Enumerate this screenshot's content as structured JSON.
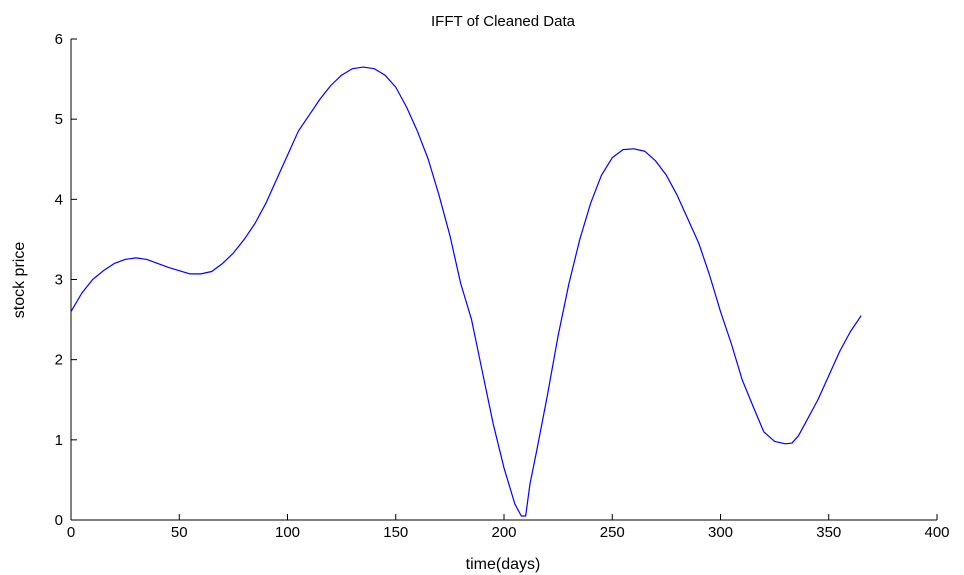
{
  "chart_data": {
    "type": "line",
    "title": "IFFT of Cleaned Data",
    "xlabel": "time(days)",
    "ylabel": "stock price",
    "xlim": [
      0,
      400
    ],
    "ylim": [
      0,
      6
    ],
    "xticks": [
      0,
      50,
      100,
      150,
      200,
      250,
      300,
      350,
      400
    ],
    "yticks": [
      0,
      1,
      2,
      3,
      4,
      5,
      6
    ],
    "grid": false,
    "colors": {
      "line": "#0000ff",
      "axes": "#000000"
    },
    "series": [
      {
        "x": [
          0,
          5,
          10,
          15,
          20,
          25,
          30,
          35,
          40,
          45,
          50,
          55,
          60,
          65,
          70,
          75,
          80,
          85,
          90,
          95,
          100,
          105,
          110,
          115,
          120,
          125,
          130,
          135,
          140,
          145,
          150,
          155,
          160,
          165,
          170,
          175,
          180,
          185,
          190,
          195,
          200,
          205,
          208,
          210,
          212,
          215,
          220,
          225,
          230,
          235,
          240,
          245,
          250,
          255,
          260,
          265,
          270,
          275,
          280,
          285,
          290,
          295,
          300,
          305,
          310,
          315,
          320,
          325,
          330,
          333,
          336,
          340,
          345,
          350,
          355,
          360,
          365
        ],
        "y": [
          2.6,
          2.83,
          3.0,
          3.11,
          3.2,
          3.25,
          3.27,
          3.25,
          3.2,
          3.15,
          3.11,
          3.07,
          3.07,
          3.1,
          3.2,
          3.33,
          3.5,
          3.7,
          3.95,
          4.25,
          4.55,
          4.85,
          5.05,
          5.25,
          5.42,
          5.55,
          5.63,
          5.65,
          5.63,
          5.55,
          5.4,
          5.15,
          4.85,
          4.5,
          4.05,
          3.55,
          2.95,
          2.5,
          1.85,
          1.2,
          0.65,
          0.2,
          0.05,
          0.05,
          0.45,
          0.85,
          1.55,
          2.3,
          2.95,
          3.5,
          3.95,
          4.3,
          4.52,
          4.62,
          4.63,
          4.6,
          4.48,
          4.3,
          4.05,
          3.75,
          3.45,
          3.05,
          2.6,
          2.2,
          1.75,
          1.42,
          1.1,
          0.98,
          0.95,
          0.96,
          1.05,
          1.25,
          1.5,
          1.8,
          2.1,
          2.35,
          2.55
        ]
      }
    ]
  }
}
